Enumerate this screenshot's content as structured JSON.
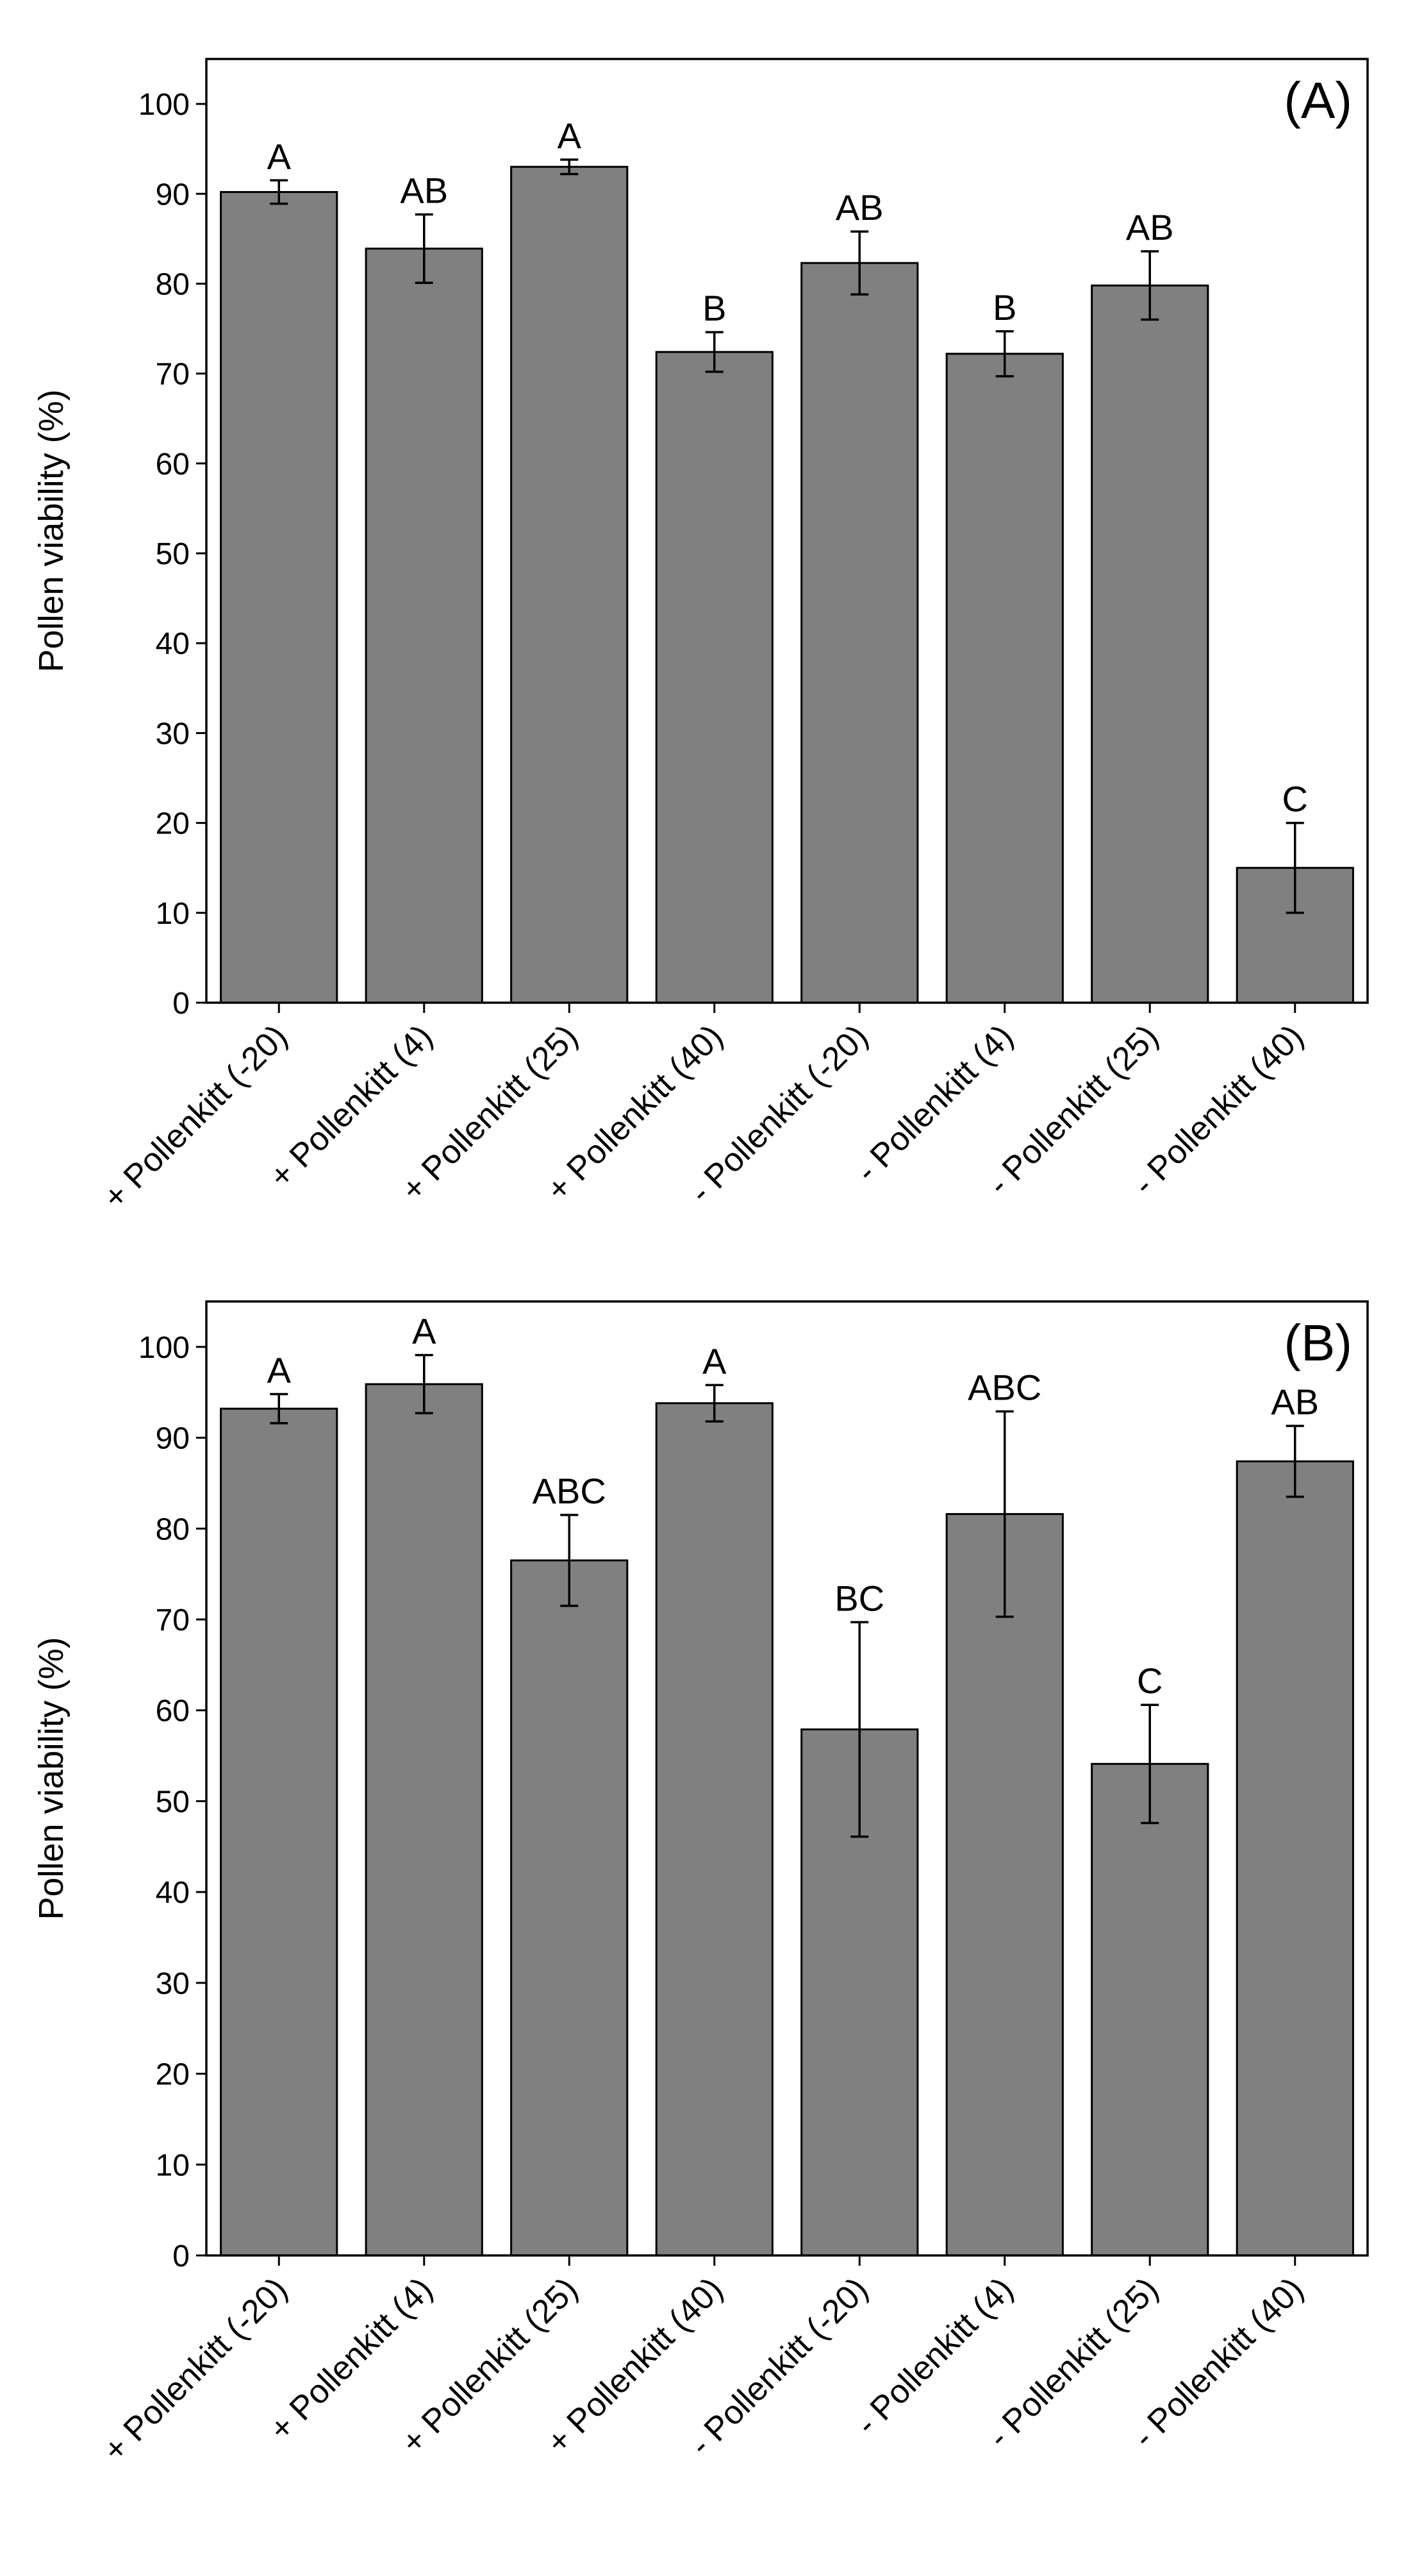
{
  "chart_data": [
    {
      "type": "bar",
      "panel_label": "(A)",
      "ylabel": "Pollen viability (%)",
      "ylim": [
        0,
        105
      ],
      "yticks": [
        "0",
        "10",
        "20",
        "30",
        "40",
        "50",
        "60",
        "70",
        "80",
        "90",
        "100"
      ],
      "categories": [
        "+ Pollenkitt (-20)",
        "+ Pollenkitt (4)",
        "+ Pollenkitt (25)",
        "+ Pollenkitt (40)",
        "- Pollenkitt (-20)",
        "- Pollenkitt (4)",
        "- Pollenkitt (25)",
        "- Pollenkitt (40)"
      ],
      "values": [
        90.2,
        83.9,
        93.0,
        72.4,
        82.3,
        72.2,
        79.8,
        15.0
      ],
      "errors": [
        1.3,
        3.8,
        0.8,
        2.2,
        3.5,
        2.5,
        3.8,
        5.0
      ],
      "letters": [
        "A",
        "AB",
        "A",
        "B",
        "AB",
        "B",
        "AB",
        "C"
      ],
      "bar_color": "#808080",
      "grid": false
    },
    {
      "type": "bar",
      "panel_label": "(B)",
      "ylabel": "Pollen viability (%)",
      "ylim": [
        0,
        105
      ],
      "yticks": [
        "0",
        "10",
        "20",
        "30",
        "40",
        "50",
        "60",
        "70",
        "80",
        "90",
        "100"
      ],
      "categories": [
        "+ Pollenkitt (-20)",
        "+ Pollenkitt (4)",
        "+ Pollenkitt (25)",
        "+ Pollenkitt (40)",
        "- Pollenkitt (-20)",
        "- Pollenkitt (4)",
        "- Pollenkitt (25)",
        "- Pollenkitt (40)"
      ],
      "values": [
        93.2,
        95.9,
        76.5,
        93.8,
        57.9,
        81.6,
        54.1,
        87.4
      ],
      "errors": [
        1.6,
        3.2,
        5.0,
        2.0,
        11.8,
        11.3,
        6.5,
        3.9
      ],
      "letters": [
        "A",
        "A",
        "ABC",
        "A",
        "BC",
        "ABC",
        "C",
        "AB"
      ],
      "bar_color": "#808080",
      "grid": false
    }
  ]
}
